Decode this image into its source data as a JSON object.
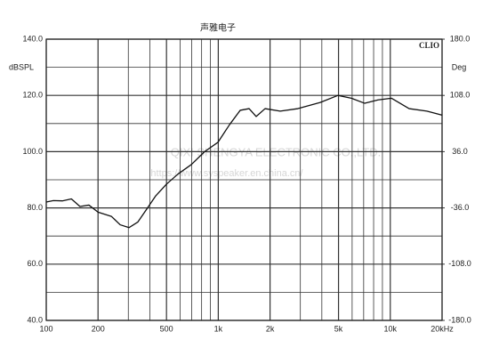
{
  "chart_data": {
    "type": "line",
    "title": "声雅电子",
    "brand": "CLIO",
    "ylabel": "dBSPL",
    "y2label": "Deg",
    "watermark": [
      "QIXI SHENGYA ELECTRONIC CO.,LTD.",
      "https://www.syspeaker.en.china.cn/"
    ],
    "xscale": "log",
    "grid": true,
    "xlim": [
      100,
      20000
    ],
    "xticks": [
      100,
      200,
      500,
      {
        "value": 1000,
        "label": "1k"
      },
      {
        "value": 2000,
        "label": "2k"
      },
      {
        "value": 5000,
        "label": "5k"
      },
      {
        "value": 10000,
        "label": "10k"
      },
      {
        "value": 20000,
        "label": "20kHz"
      }
    ],
    "xgrid_minor": [
      300,
      400,
      600,
      700,
      800,
      900,
      3000,
      4000,
      6000,
      7000,
      8000,
      9000
    ],
    "ylim": [
      40,
      140
    ],
    "yticks": [
      {
        "value": 140,
        "label": "140.0"
      },
      {
        "value": 120,
        "label": "120.0"
      },
      {
        "value": 100,
        "label": "100.0"
      },
      {
        "value": 80,
        "label": "80.0"
      },
      {
        "value": 60,
        "label": "60.0"
      },
      {
        "value": 40,
        "label": "40.0"
      }
    ],
    "ygrid_minor": [
      130,
      110,
      90,
      70,
      50
    ],
    "y2lim": [
      -180,
      180
    ],
    "y2ticks": [
      {
        "value": 180,
        "label": "180.0"
      },
      {
        "value": 108,
        "label": "108.0"
      },
      {
        "value": 36,
        "label": "36.0"
      },
      {
        "value": -36,
        "label": "-36.0"
      },
      {
        "value": -108,
        "label": "-108.0"
      },
      {
        "value": -180,
        "label": "-180.0"
      }
    ],
    "series": [
      {
        "name": "SPL",
        "color": "#111111",
        "x": [
          100,
          110,
          124,
          140,
          157,
          177,
          200,
          239,
          269,
          303,
          341,
          384,
          433,
          499,
          582,
          697,
          833,
          995,
          1163,
          1341,
          1511,
          1661,
          1871,
          2291,
          2904,
          3914,
          4966,
          5941,
          7100,
          8490,
          10150,
          12870,
          16330,
          20000
        ],
        "values": [
          82.1,
          82.6,
          82.5,
          83.2,
          80.5,
          81.0,
          78.5,
          77.0,
          74.0,
          73.0,
          75.0,
          79.6,
          84.3,
          88.4,
          92.0,
          95.4,
          100.0,
          103.3,
          109.6,
          114.7,
          115.3,
          112.5,
          115.3,
          114.4,
          115.3,
          117.5,
          120.0,
          119.0,
          117.2,
          118.4,
          119.0,
          115.3,
          114.4,
          113.0
        ]
      }
    ]
  }
}
